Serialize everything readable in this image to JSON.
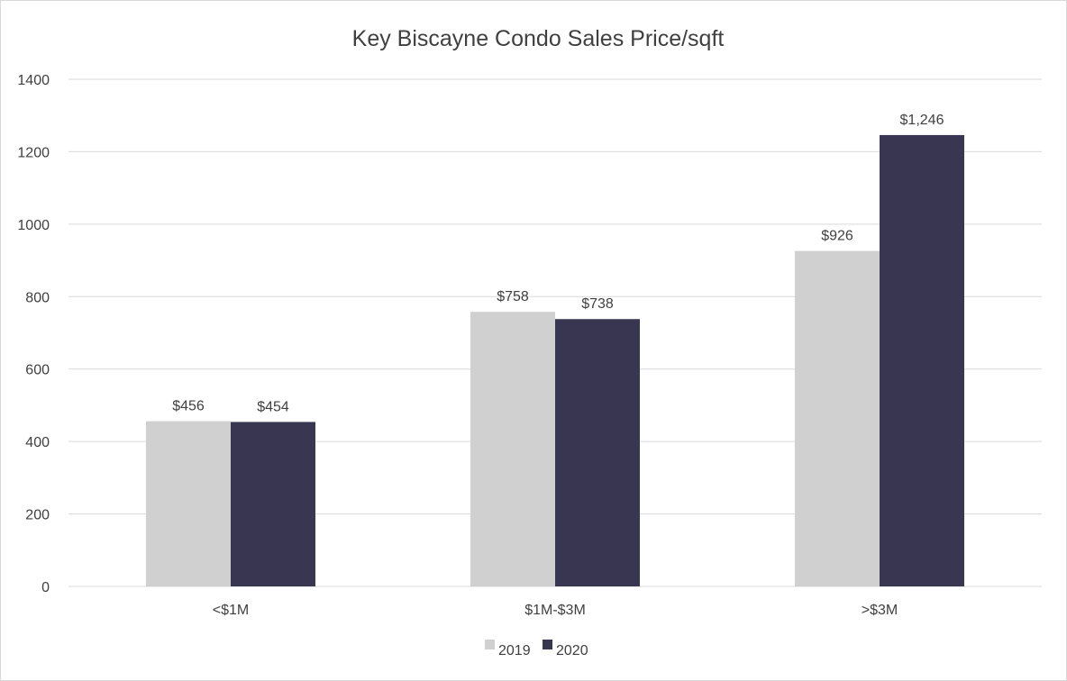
{
  "chart_data": {
    "type": "bar",
    "title": "Key Biscayne Condo Sales Price/sqft",
    "categories": [
      "<$1M",
      "$1M-$3M",
      ">$3M"
    ],
    "series": [
      {
        "name": "2019",
        "color": "#d0d0d0",
        "values": [
          456,
          758,
          926
        ],
        "labels": [
          "$456",
          "$758",
          "$926"
        ]
      },
      {
        "name": "2020",
        "color": "#383650",
        "values": [
          454,
          738,
          1246
        ],
        "labels": [
          "$454",
          "$738",
          "$1,246"
        ]
      }
    ],
    "ylim": [
      0,
      1400
    ],
    "yticks": [
      0,
      200,
      400,
      600,
      800,
      1000,
      1200,
      1400
    ],
    "grid": true,
    "legend": "bottom"
  }
}
